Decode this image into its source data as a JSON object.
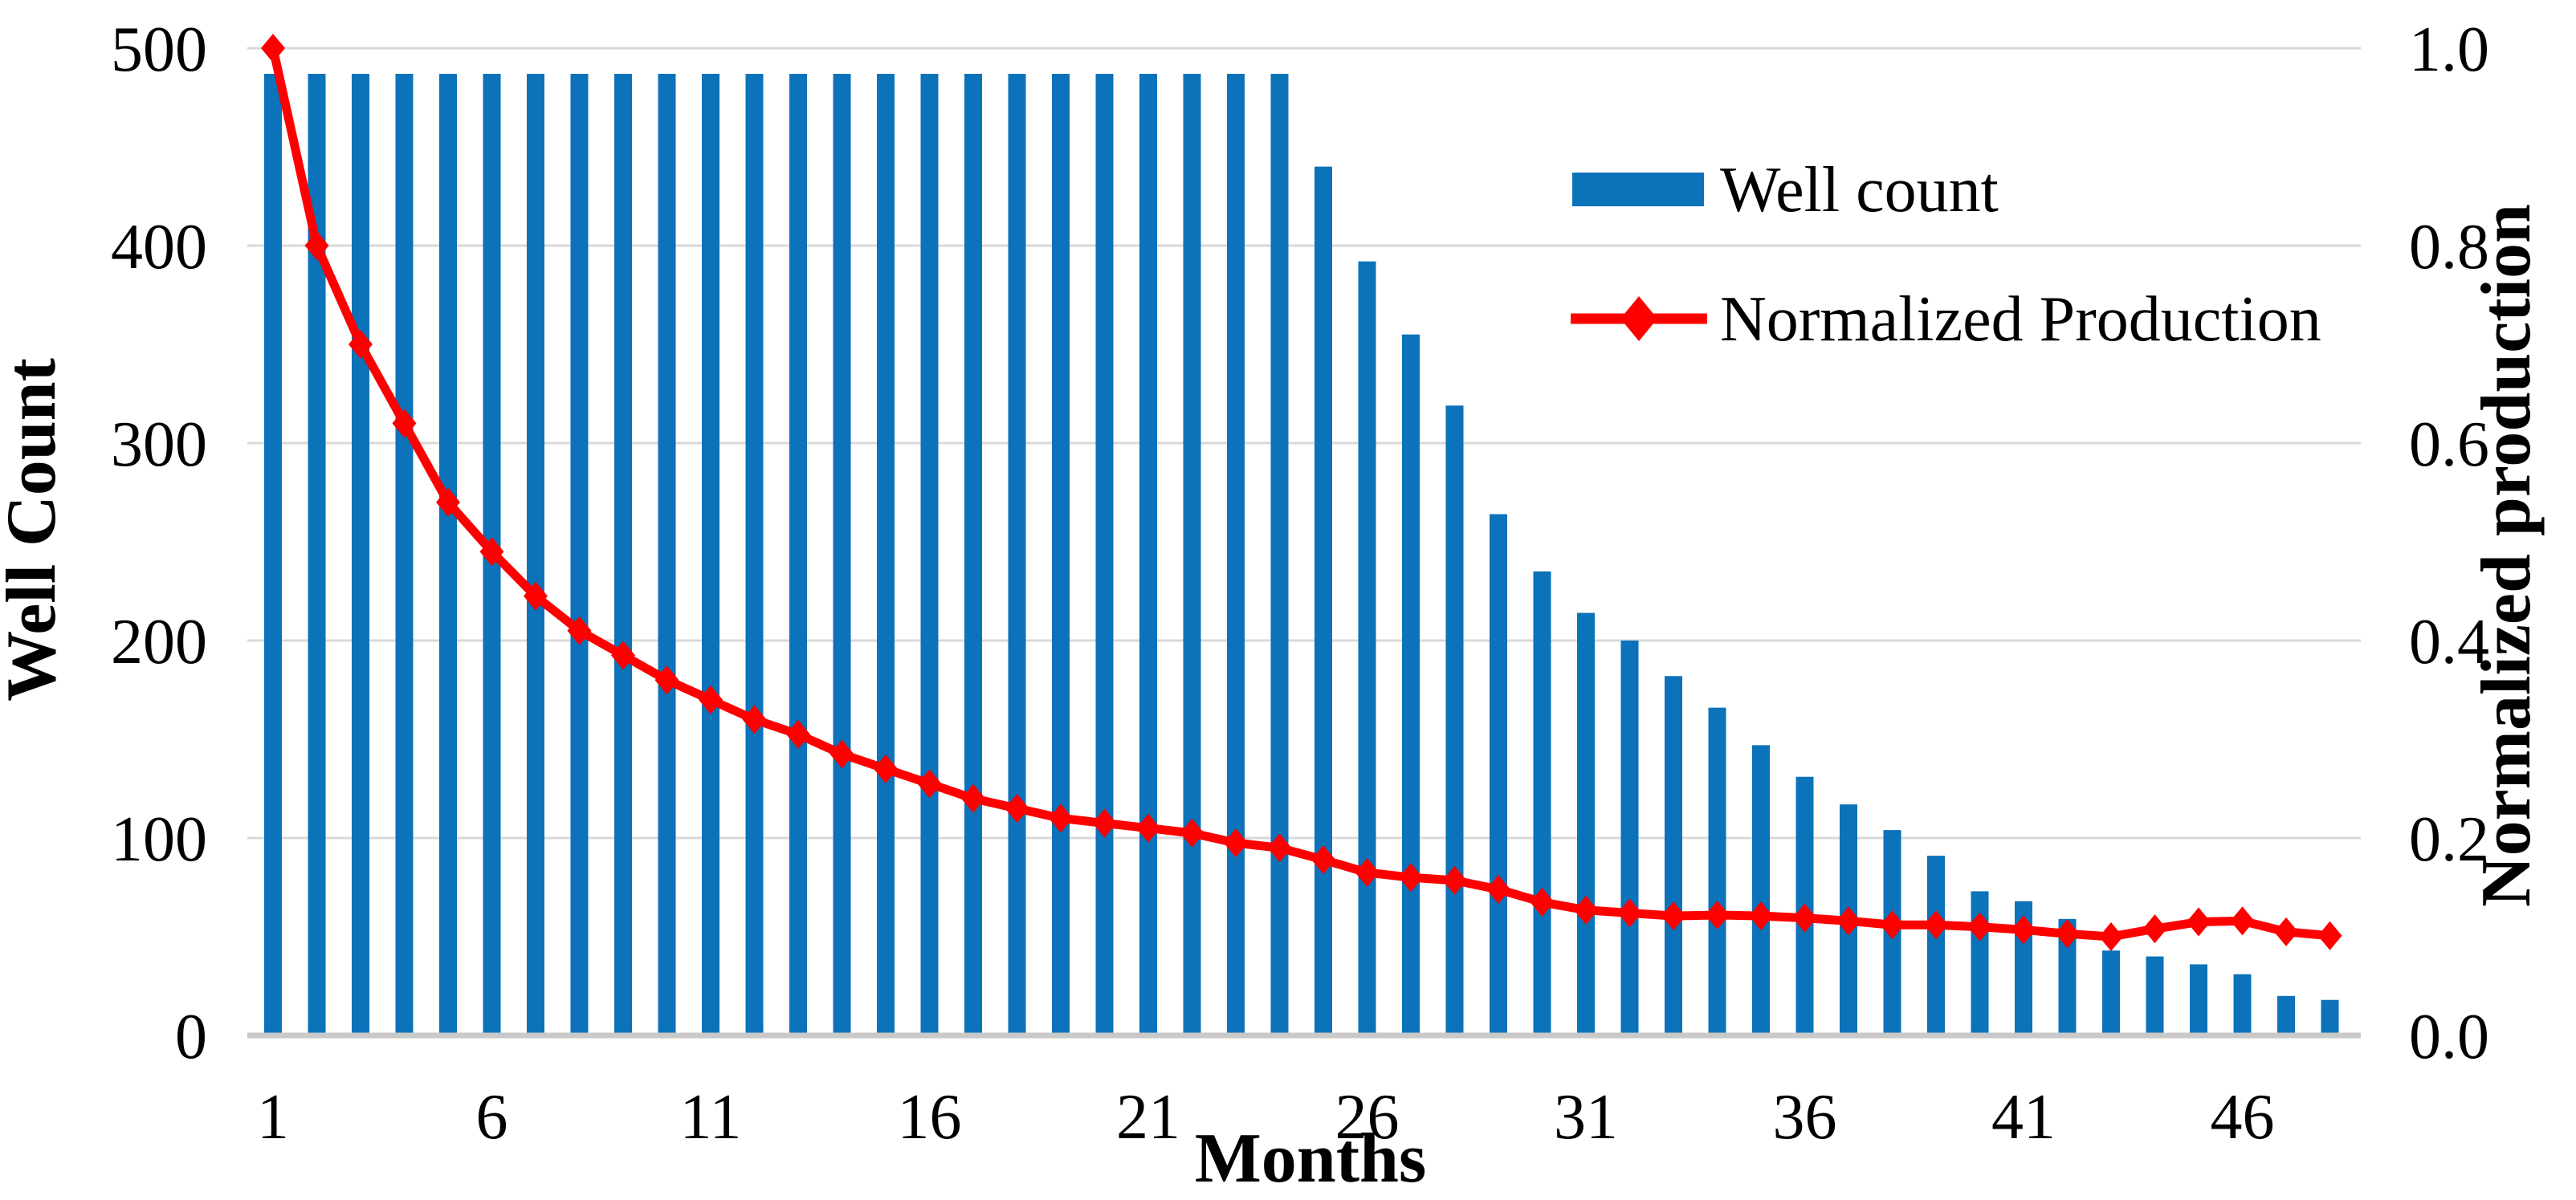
{
  "figure": {
    "colors": {
      "bar_fill": "#0C72B9",
      "line_stroke": "#FD0000",
      "gridline": "#D9D9D9",
      "axis_line": "#C9C9C9",
      "text": "#000000",
      "background": "#FFFFFF"
    }
  },
  "chart_data": {
    "type": "bar+line combo",
    "title": "",
    "x": [
      1,
      2,
      3,
      4,
      5,
      6,
      7,
      8,
      9,
      10,
      11,
      12,
      13,
      14,
      15,
      16,
      17,
      18,
      19,
      20,
      21,
      22,
      23,
      24,
      25,
      26,
      27,
      28,
      29,
      30,
      31,
      32,
      33,
      34,
      35,
      36,
      37,
      38,
      39,
      40,
      41,
      42,
      43,
      44,
      45,
      46,
      47,
      48
    ],
    "series": [
      {
        "name": "Well count",
        "type": "bar",
        "axis": "left",
        "values": [
          487,
          487,
          487,
          487,
          487,
          487,
          487,
          487,
          487,
          487,
          487,
          487,
          487,
          487,
          487,
          487,
          487,
          487,
          487,
          487,
          487,
          487,
          487,
          487,
          440,
          392,
          355,
          319,
          264,
          235,
          214,
          200,
          182,
          166,
          147,
          131,
          117,
          104,
          91,
          73,
          68,
          59,
          43,
          40,
          36,
          31,
          20,
          18
        ]
      },
      {
        "name": "Normalized Production",
        "type": "line",
        "axis": "right",
        "values": [
          1.0,
          0.8,
          0.7,
          0.62,
          0.54,
          0.49,
          0.445,
          0.41,
          0.385,
          0.36,
          0.34,
          0.32,
          0.305,
          0.285,
          0.27,
          0.255,
          0.24,
          0.23,
          0.22,
          0.215,
          0.21,
          0.205,
          0.195,
          0.19,
          0.178,
          0.165,
          0.16,
          0.157,
          0.148,
          0.135,
          0.127,
          0.124,
          0.121,
          0.122,
          0.121,
          0.119,
          0.116,
          0.112,
          0.112,
          0.11,
          0.107,
          0.103,
          0.1,
          0.108,
          0.115,
          0.116,
          0.105,
          0.101
        ]
      }
    ],
    "left_axis": {
      "label": "Well Count",
      "min": 0,
      "max": 500,
      "ticks": [
        "0",
        "100",
        "200",
        "300",
        "400",
        "500"
      ]
    },
    "right_axis": {
      "label": "Normalized production",
      "min": 0.0,
      "max": 1.0,
      "ticks": [
        "0.0",
        "0.2",
        "0.4",
        "0.6",
        "0.8",
        "1.0"
      ]
    },
    "x_axis": {
      "label": "Months",
      "tick_months": [
        1,
        6,
        11,
        16,
        21,
        26,
        31,
        36,
        41,
        46
      ]
    },
    "grid": true,
    "legend_position": "inside upper-right"
  }
}
